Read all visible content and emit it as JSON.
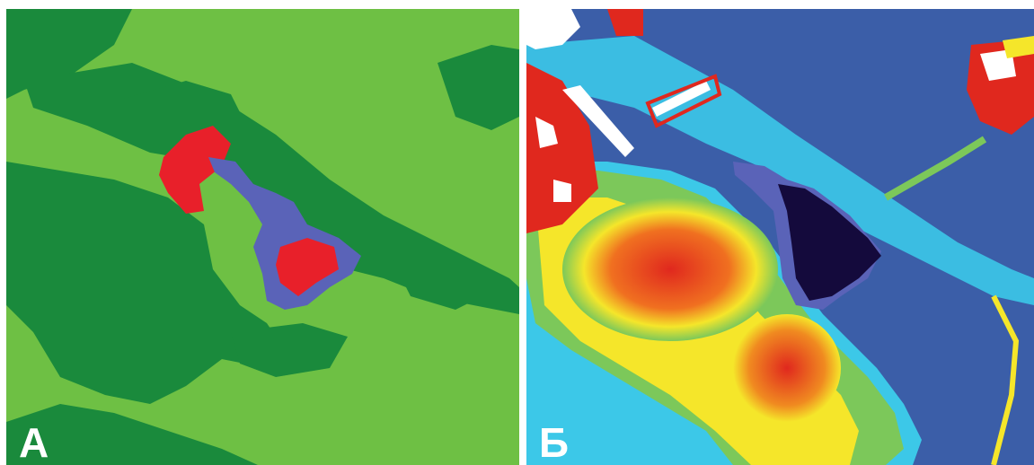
{
  "panels": [
    {
      "label": "А",
      "description_colors": {
        "light_green": "#6ec044",
        "dark_green": "#1a8a3c",
        "red": "#e8202a",
        "blue": "#5a63b8"
      }
    },
    {
      "label": "Б",
      "description_colors": {
        "background_blue": "#3b5ea8",
        "cyan": "#3cc8e8",
        "green": "#7cc85a",
        "yellow": "#f5e62a",
        "red": "#e0281e",
        "dark": "#140a3c",
        "white": "#ffffff"
      }
    }
  ]
}
